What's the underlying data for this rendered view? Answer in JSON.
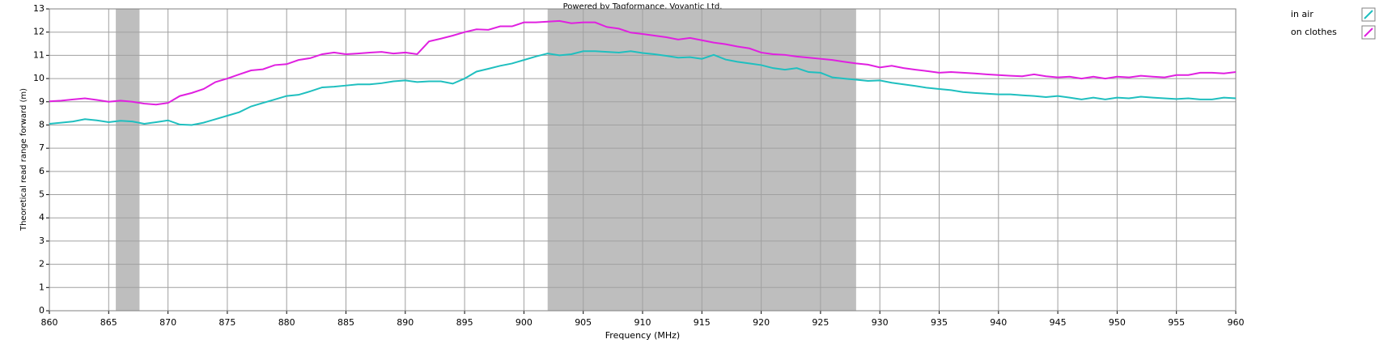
{
  "chart_data": {
    "type": "line",
    "title": "Powered by Tagformance, Voyantic Ltd.",
    "x_label": "Frequency (MHz)",
    "y_label": "Theoretical read range forward (m)",
    "x": [
      860,
      861,
      862,
      863,
      864,
      865,
      866,
      867,
      868,
      869,
      870,
      871,
      872,
      873,
      874,
      875,
      876,
      877,
      878,
      879,
      880,
      881,
      882,
      883,
      884,
      885,
      886,
      887,
      888,
      889,
      890,
      891,
      892,
      893,
      894,
      895,
      896,
      897,
      898,
      899,
      900,
      901,
      902,
      903,
      904,
      905,
      906,
      907,
      908,
      909,
      910,
      911,
      912,
      913,
      914,
      915,
      916,
      917,
      918,
      919,
      920,
      921,
      922,
      923,
      924,
      925,
      926,
      927,
      928,
      929,
      930,
      931,
      932,
      933,
      934,
      935,
      936,
      937,
      938,
      939,
      940,
      941,
      942,
      943,
      944,
      945,
      946,
      947,
      948,
      949,
      950,
      951,
      952,
      953,
      954,
      955,
      956,
      957,
      958,
      959,
      960
    ],
    "series": [
      {
        "name": "in air",
        "color": "#1fbfbf",
        "values": [
          8.05,
          8.1,
          8.15,
          8.25,
          8.2,
          8.12,
          8.18,
          8.15,
          8.05,
          8.12,
          8.2,
          8.02,
          8.0,
          8.1,
          8.25,
          8.4,
          8.55,
          8.8,
          8.95,
          9.1,
          9.25,
          9.3,
          9.45,
          9.62,
          9.65,
          9.7,
          9.75,
          9.75,
          9.8,
          9.88,
          9.92,
          9.85,
          9.88,
          9.88,
          9.78,
          10.0,
          10.3,
          10.42,
          10.55,
          10.65,
          10.8,
          10.95,
          11.08,
          11.0,
          11.05,
          11.18,
          11.18,
          11.15,
          11.12,
          11.18,
          11.1,
          11.05,
          10.98,
          10.9,
          10.92,
          10.85,
          11.02,
          10.82,
          10.72,
          10.65,
          10.58,
          10.45,
          10.38,
          10.45,
          10.28,
          10.25,
          10.05,
          10.0,
          9.95,
          9.9,
          9.92,
          9.82,
          9.75,
          9.68,
          9.6,
          9.55,
          9.5,
          9.42,
          9.38,
          9.35,
          9.32,
          9.32,
          9.28,
          9.25,
          9.2,
          9.25,
          9.18,
          9.1,
          9.18,
          9.1,
          9.18,
          9.15,
          9.22,
          9.18,
          9.15,
          9.12,
          9.15,
          9.1,
          9.1,
          9.18,
          9.15
        ]
      },
      {
        "name": "on clothes",
        "color": "#e020e0",
        "values": [
          9.02,
          9.05,
          9.1,
          9.15,
          9.08,
          9.0,
          9.05,
          9.0,
          8.92,
          8.88,
          8.95,
          9.25,
          9.38,
          9.55,
          9.85,
          10.0,
          10.18,
          10.35,
          10.4,
          10.58,
          10.62,
          10.8,
          10.88,
          11.05,
          11.12,
          11.05,
          11.08,
          11.12,
          11.15,
          11.08,
          11.12,
          11.05,
          11.6,
          11.72,
          11.85,
          12.0,
          12.12,
          12.1,
          12.25,
          12.25,
          12.42,
          12.42,
          12.45,
          12.48,
          12.38,
          12.42,
          12.42,
          12.22,
          12.15,
          11.98,
          11.92,
          11.85,
          11.78,
          11.68,
          11.75,
          11.65,
          11.55,
          11.48,
          11.38,
          11.3,
          11.12,
          11.05,
          11.02,
          10.95,
          10.9,
          10.85,
          10.8,
          10.72,
          10.65,
          10.6,
          10.48,
          10.55,
          10.45,
          10.38,
          10.32,
          10.25,
          10.28,
          10.25,
          10.22,
          10.18,
          10.15,
          10.12,
          10.1,
          10.18,
          10.1,
          10.05,
          10.08,
          10.0,
          10.08,
          10.0,
          10.08,
          10.05,
          10.12,
          10.08,
          10.05,
          10.15,
          10.15,
          10.25,
          10.25,
          10.22,
          10.28
        ]
      }
    ],
    "bands": [
      [
        865.6,
        867.6
      ],
      [
        902,
        928
      ]
    ],
    "band_color": "#bebebe",
    "xlim": [
      860,
      960
    ],
    "ylim": [
      0,
      13
    ],
    "xticks": [
      860,
      865,
      870,
      875,
      880,
      885,
      890,
      895,
      900,
      905,
      910,
      915,
      920,
      925,
      930,
      935,
      940,
      945,
      950,
      955,
      960
    ],
    "yticks": [
      0,
      1,
      2,
      3,
      4,
      5,
      6,
      7,
      8,
      9,
      10,
      11,
      12,
      13
    ],
    "grid": true,
    "legend": "right"
  }
}
